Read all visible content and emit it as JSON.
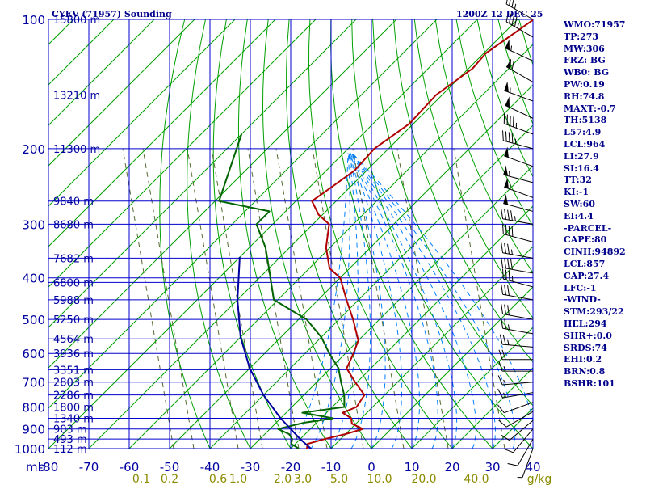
{
  "header": {
    "title": "CYEV (71957) Sounding",
    "valid_time": "1200Z 12 DEC 25"
  },
  "stats": [
    "WMO:71957",
    "TP:273",
    "MW:306",
    "FRZ: BG",
    "WB0: BG",
    "PW:0.19",
    "RH:74.8",
    "MAXT:-0.7",
    "TH:5138",
    "L57:4.9",
    "LCL:964",
    "LI:27.9",
    "SI:16.4",
    "TT:32",
    "KI:-1",
    "SW:60",
    "EI:4.4",
    "-PARCEL-",
    "CAPE:80",
    "CINH:94892",
    "LCL:857",
    "CAP:27.4",
    "LFC:-1",
    "-WIND-",
    "STM:293/22",
    "HEL:294",
    "SHR+:0.0",
    "SRDS:74",
    "EHI:0.2",
    "BRN:0.8",
    "BSHR:101"
  ],
  "colors": {
    "grid": "#0000cd",
    "dry_adiabat": "#00a000",
    "moist_adiabat": "#0080ff",
    "mixing_ratio": "#556b2f",
    "temperature": "#b00000",
    "dewpoint": "#006400",
    "parcel": "#0000a0",
    "wind": "#000000"
  },
  "chart_data": {
    "type": "line",
    "diagram": "skew-T log-p",
    "pressure_axis": {
      "unit_label": "mb",
      "levels": [
        100,
        200,
        300,
        400,
        500,
        600,
        700,
        800,
        900,
        1000
      ],
      "range": [
        100,
        1000
      ],
      "scale": "log"
    },
    "temperature_axis": {
      "ticks": [
        -80,
        -70,
        -60,
        -50,
        -40,
        -30,
        -20,
        -10,
        0,
        10,
        20,
        30,
        40
      ],
      "range": [
        -80,
        40
      ]
    },
    "height_labels": [
      {
        "p": 100,
        "label": "15800 m"
      },
      {
        "p": 150,
        "label": "13210 m"
      },
      {
        "p": 200,
        "label": "11300 m"
      },
      {
        "p": 265,
        "label": "9840 m"
      },
      {
        "p": 300,
        "label": "8680 m"
      },
      {
        "p": 360,
        "label": "7682 m"
      },
      {
        "p": 410,
        "label": "6800 m"
      },
      {
        "p": 450,
        "label": "5988 m"
      },
      {
        "p": 500,
        "label": "5250 m"
      },
      {
        "p": 555,
        "label": "4564 m"
      },
      {
        "p": 600,
        "label": "3936 m"
      },
      {
        "p": 655,
        "label": "3351 m"
      },
      {
        "p": 700,
        "label": "2803 m"
      },
      {
        "p": 750,
        "label": "2286 m"
      },
      {
        "p": 800,
        "label": "1800 m"
      },
      {
        "p": 850,
        "label": "1340 m"
      },
      {
        "p": 900,
        "label": "903 m"
      },
      {
        "p": 950,
        "label": "493 m"
      },
      {
        "p": 1000,
        "label": "112 m"
      }
    ],
    "mixing_ratio_labels": [
      "0.1",
      "0.2",
      "0.6",
      "1.0",
      "2.0",
      "3.0",
      "5.0",
      "10.0",
      "20.0",
      "40.0"
    ],
    "mixing_ratio_unit": "g/kg",
    "series": [
      {
        "name": "temperature",
        "points": [
          {
            "p": 100,
            "t": -66.0
          },
          {
            "p": 120,
            "t": -69.5
          },
          {
            "p": 130,
            "t": -69.0
          },
          {
            "p": 150,
            "t": -71.5
          },
          {
            "p": 175,
            "t": -71.0
          },
          {
            "p": 200,
            "t": -73.5
          },
          {
            "p": 225,
            "t": -73.0
          },
          {
            "p": 245,
            "t": -74.5
          },
          {
            "p": 265,
            "t": -76.0
          },
          {
            "p": 285,
            "t": -71.0
          },
          {
            "p": 300,
            "t": -66.0
          },
          {
            "p": 340,
            "t": -61.0
          },
          {
            "p": 380,
            "t": -55.0
          },
          {
            "p": 400,
            "t": -50.0
          },
          {
            "p": 450,
            "t": -43.0
          },
          {
            "p": 500,
            "t": -36.5
          },
          {
            "p": 560,
            "t": -30.0
          },
          {
            "p": 600,
            "t": -28.0
          },
          {
            "p": 650,
            "t": -26.0
          },
          {
            "p": 700,
            "t": -20.5
          },
          {
            "p": 750,
            "t": -15.0
          },
          {
            "p": 800,
            "t": -14.0
          },
          {
            "p": 825,
            "t": -16.0
          },
          {
            "p": 850,
            "t": -12.5
          },
          {
            "p": 875,
            "t": -11.0
          },
          {
            "p": 900,
            "t": -7.0
          },
          {
            "p": 925,
            "t": -10.0
          },
          {
            "p": 950,
            "t": -14.0
          },
          {
            "p": 975,
            "t": -17.0
          },
          {
            "p": 1000,
            "t": -16.0
          }
        ]
      },
      {
        "name": "dewpoint",
        "points": [
          {
            "p": 185,
            "t": -110.0
          },
          {
            "p": 265,
            "t": -99.0
          },
          {
            "p": 280,
            "t": -84.0
          },
          {
            "p": 300,
            "t": -84.0
          },
          {
            "p": 340,
            "t": -76.0
          },
          {
            "p": 380,
            "t": -70.0
          },
          {
            "p": 450,
            "t": -61.0
          },
          {
            "p": 500,
            "t": -48.0
          },
          {
            "p": 550,
            "t": -40.0
          },
          {
            "p": 600,
            "t": -34.0
          },
          {
            "p": 650,
            "t": -28.0
          },
          {
            "p": 700,
            "t": -24.0
          },
          {
            "p": 750,
            "t": -20.0
          },
          {
            "p": 800,
            "t": -17.0
          },
          {
            "p": 825,
            "t": -26.0
          },
          {
            "p": 850,
            "t": -17.0
          },
          {
            "p": 870,
            "t": -23.0
          },
          {
            "p": 900,
            "t": -28.0
          },
          {
            "p": 925,
            "t": -24.0
          },
          {
            "p": 950,
            "t": -22.0
          },
          {
            "p": 975,
            "t": -21.0
          },
          {
            "p": 1000,
            "t": -18.0
          }
        ]
      },
      {
        "name": "parcel",
        "points": [
          {
            "p": 358,
            "t": -80.0
          },
          {
            "p": 450,
            "t": -70.0
          },
          {
            "p": 550,
            "t": -60.0
          },
          {
            "p": 650,
            "t": -50.0
          },
          {
            "p": 750,
            "t": -40.0
          },
          {
            "p": 850,
            "t": -30.0
          },
          {
            "p": 950,
            "t": -20.0
          },
          {
            "p": 1000,
            "t": -15.0
          }
        ]
      }
    ],
    "wind_barbs": [
      {
        "p": 100,
        "dir": 300,
        "spd": 35
      },
      {
        "p": 110,
        "dir": 300,
        "spd": 45
      },
      {
        "p": 125,
        "dir": 295,
        "spd": 55
      },
      {
        "p": 140,
        "dir": 300,
        "spd": 60
      },
      {
        "p": 155,
        "dir": 290,
        "spd": 55
      },
      {
        "p": 170,
        "dir": 295,
        "spd": 50
      },
      {
        "p": 185,
        "dir": 290,
        "spd": 45
      },
      {
        "p": 200,
        "dir": 285,
        "spd": 45
      },
      {
        "p": 220,
        "dir": 290,
        "spd": 50
      },
      {
        "p": 240,
        "dir": 285,
        "spd": 55
      },
      {
        "p": 260,
        "dir": 290,
        "spd": 55
      },
      {
        "p": 280,
        "dir": 285,
        "spd": 50
      },
      {
        "p": 300,
        "dir": 280,
        "spd": 45
      },
      {
        "p": 330,
        "dir": 285,
        "spd": 40
      },
      {
        "p": 360,
        "dir": 280,
        "spd": 35
      },
      {
        "p": 390,
        "dir": 280,
        "spd": 40
      },
      {
        "p": 420,
        "dir": 285,
        "spd": 35
      },
      {
        "p": 450,
        "dir": 280,
        "spd": 30
      },
      {
        "p": 500,
        "dir": 280,
        "spd": 30
      },
      {
        "p": 540,
        "dir": 280,
        "spd": 25
      },
      {
        "p": 580,
        "dir": 275,
        "spd": 25
      },
      {
        "p": 620,
        "dir": 270,
        "spd": 20
      },
      {
        "p": 660,
        "dir": 270,
        "spd": 15
      },
      {
        "p": 700,
        "dir": 265,
        "spd": 15
      },
      {
        "p": 740,
        "dir": 260,
        "spd": 15
      },
      {
        "p": 780,
        "dir": 250,
        "spd": 10
      },
      {
        "p": 820,
        "dir": 240,
        "spd": 10
      },
      {
        "p": 860,
        "dir": 230,
        "spd": 10
      },
      {
        "p": 900,
        "dir": 220,
        "spd": 10
      },
      {
        "p": 950,
        "dir": 210,
        "spd": 10
      },
      {
        "p": 1000,
        "dir": 200,
        "spd": 5
      }
    ]
  }
}
